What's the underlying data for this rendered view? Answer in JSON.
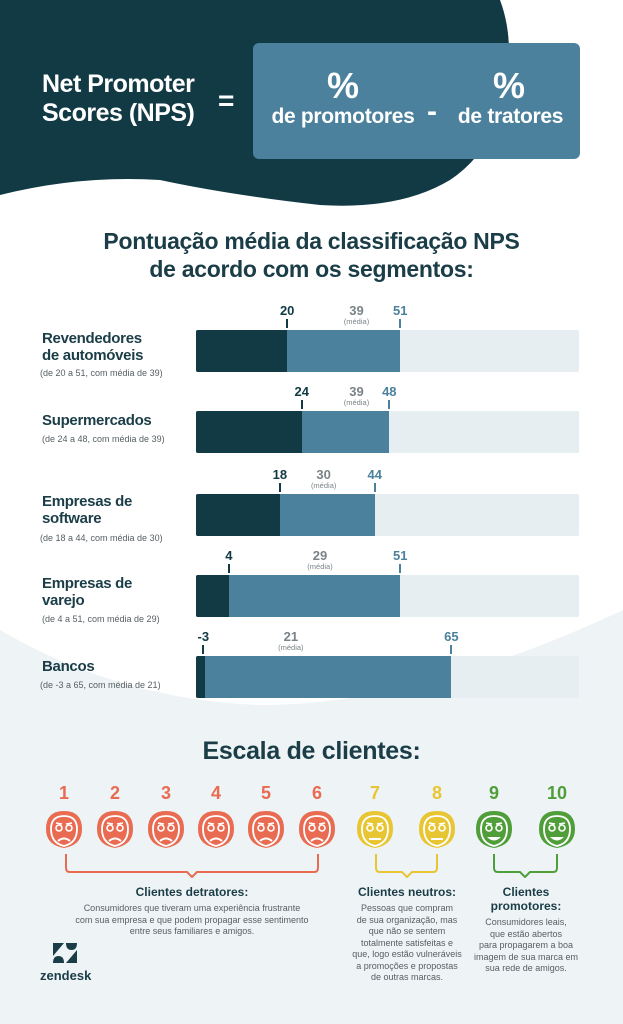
{
  "header": {
    "title_line1": "Net Promoter",
    "title_line2": "Scores (NPS)",
    "equals": "=",
    "pct1": "%",
    "label1": "de promotores",
    "minus": "-",
    "pct2": "%",
    "label2": "de tratores"
  },
  "section_title_line1": "Pontuação média da classificação NPS",
  "section_title_line2": "de acordo com os segmentos:",
  "media_label": "(média)",
  "segments": [
    {
      "name1": "Revendedores",
      "name2": "de automóveis",
      "range": "(de 20 a 51, com média de 39)",
      "min": "20",
      "avg": "39",
      "max": "51"
    },
    {
      "name1": "Supermercados",
      "name2": "",
      "range": "(de 24 a 48, com média de 39)",
      "min": "24",
      "avg": "39",
      "max": "48"
    },
    {
      "name1": "Empresas de",
      "name2": "software",
      "range": "(de 18 a 44, com média de 30)",
      "min": "18",
      "avg": "30",
      "max": "44"
    },
    {
      "name1": "Empresas de",
      "name2": "varejo",
      "range": "(de 4 a 51, com média de 29)",
      "min": "4",
      "avg": "29",
      "max": "51"
    },
    {
      "name1": "Bancos",
      "name2": "",
      "range": "(de -3 a 65, com média de 21)",
      "min": "-3",
      "avg": "21",
      "max": "65"
    }
  ],
  "chart_data": {
    "type": "bar",
    "categories": [
      "Revendedores de automóveis",
      "Supermercados",
      "Empresas de software",
      "Empresas de varejo",
      "Bancos"
    ],
    "series": [
      {
        "name": "min",
        "values": [
          20,
          24,
          18,
          4,
          -3
        ]
      },
      {
        "name": "média",
        "values": [
          39,
          39,
          30,
          29,
          21
        ]
      },
      {
        "name": "max",
        "values": [
          51,
          48,
          44,
          51,
          65
        ]
      }
    ],
    "xlim": [
      -5,
      100
    ]
  },
  "scale": {
    "title": "Escala de clientes:",
    "numbers": [
      "1",
      "2",
      "3",
      "4",
      "5",
      "6",
      "7",
      "8",
      "9",
      "10"
    ],
    "groups": [
      {
        "title": "Clientes detratores:",
        "desc": [
          "Consumidores que tiveram uma experiência frustrante",
          "com sua empresa e que podem propagar esse sentimento",
          "entre seus familiares e amigos."
        ]
      },
      {
        "title": "Clientes neutros:",
        "desc": [
          "Pessoas que compram",
          "de sua organização, mas",
          "que não se sentem",
          "totalmente satisfeitas e",
          "que, logo estão vulneráveis",
          "a promoções e propostas",
          "de outras marcas."
        ]
      },
      {
        "title": "Clientes promotores:",
        "desc": [
          "Consumidores leais,",
          "que estão abertos",
          "para propagarem a boa",
          "imagem de sua marca em",
          "sua rede de amigos."
        ]
      }
    ]
  },
  "colors": {
    "dark": "#123a44",
    "blue": "#4b819c",
    "track": "#e6eef1",
    "detractor": "#e86b52",
    "neutral": "#e8c532",
    "promoter": "#4f9e3a"
  },
  "brand": "zendesk"
}
